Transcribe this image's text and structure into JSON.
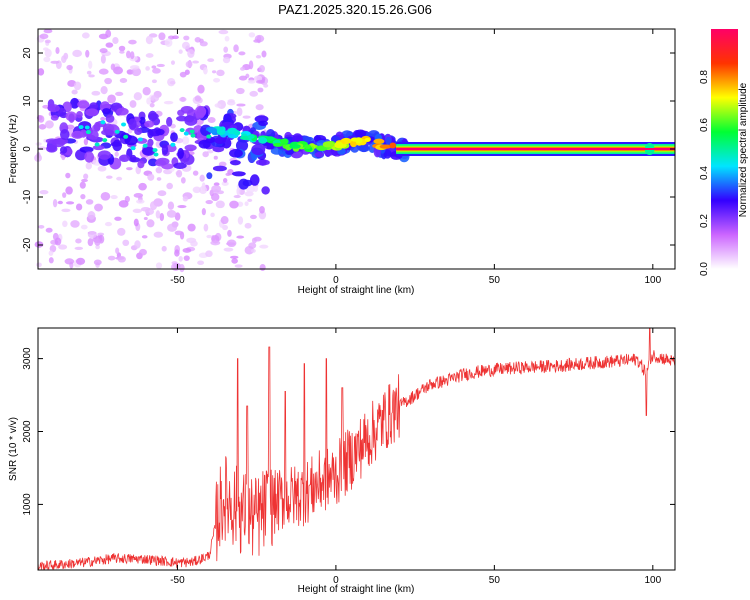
{
  "title": "PAZ1.2025.320.15.26.G06",
  "chart_data": [
    {
      "type": "heatmap",
      "title": "PAZ1.2025.320.15.26.G06",
      "xlabel": "Height of straight line (km)",
      "ylabel": "Frequency (Hz)",
      "xlim": [
        -94,
        107
      ],
      "ylim": [
        -25,
        25
      ],
      "xticks": [
        -50,
        0,
        50,
        100
      ],
      "xtick_labels": [
        "-50",
        "0",
        "50",
        "100"
      ],
      "yticks": [
        -20,
        -10,
        0,
        10,
        20
      ],
      "ytick_labels": [
        "-20",
        "-10",
        "0",
        "10",
        "20"
      ],
      "colorbar": {
        "label": "Normalized spectral amplitude",
        "range": [
          0,
          1
        ],
        "ticks": [
          0.0,
          0.2,
          0.4,
          0.6,
          0.8
        ],
        "tick_labels": [
          "0.0",
          "0.2",
          "0.4",
          "0.6",
          "0.8"
        ],
        "colors": [
          "#ffffff",
          "#cc66ff",
          "#3300ff",
          "#00e5ff",
          "#00ff33",
          "#ffff00",
          "#ff3300",
          "#ff0066"
        ]
      },
      "features": {
        "carrier_line": {
          "x_start": 19,
          "x_end": 107,
          "frequency": 0,
          "amplitude": 1.0
        },
        "noise_region": {
          "x_start": -94,
          "x_end": -22,
          "frequency_spread": 25
        },
        "ridge": [
          {
            "x": -80,
            "f": 4
          },
          {
            "x": -70,
            "f": 3
          },
          {
            "x": -60,
            "f": 1
          },
          {
            "x": -50,
            "f": 2
          },
          {
            "x": -40,
            "f": 4
          },
          {
            "x": -30,
            "f": 3
          },
          {
            "x": -20,
            "f": 1.5
          },
          {
            "x": -10,
            "f": 0.3
          },
          {
            "x": 0,
            "f": 0.8
          },
          {
            "x": 8,
            "f": 1.8
          },
          {
            "x": 14,
            "f": 1
          },
          {
            "x": 19,
            "f": 0
          }
        ]
      }
    },
    {
      "type": "line",
      "xlabel": "Height of straight line (km)",
      "ylabel": "SNR (10 * v/v)",
      "xlim": [
        -94,
        107
      ],
      "ylim": [
        100,
        3420
      ],
      "xticks": [
        -50,
        0,
        50,
        100
      ],
      "xtick_labels": [
        "-50",
        "0",
        "50",
        "100"
      ],
      "yticks": [
        1000,
        2000,
        3000
      ],
      "ytick_labels": [
        "1000",
        "2000",
        "3000"
      ],
      "color": "#ee3333",
      "series": [
        {
          "name": "SNR",
          "x": [
            -94,
            -80,
            -70,
            -60,
            -50,
            -45,
            -40,
            -37,
            -35,
            -30,
            -25,
            -22,
            -18,
            -10,
            -5,
            0,
            5,
            10,
            15,
            20,
            25,
            30,
            35,
            40,
            45,
            50,
            60,
            70,
            80,
            90,
            95,
            98,
            100,
            107
          ],
          "values": [
            150,
            200,
            260,
            250,
            200,
            210,
            300,
            900,
            1100,
            900,
            800,
            950,
            1050,
            1150,
            1300,
            1400,
            1650,
            1900,
            2150,
            2350,
            2500,
            2650,
            2700,
            2780,
            2820,
            2850,
            2880,
            2900,
            2940,
            2970,
            2990,
            2800,
            3050,
            2950
          ]
        }
      ],
      "spikes": [
        {
          "x": -31,
          "value": 3000
        },
        {
          "x": -28,
          "value": 2350
        },
        {
          "x": -21,
          "value": 3160
        },
        {
          "x": -16,
          "value": 2550
        },
        {
          "x": -10,
          "value": 2930
        },
        {
          "x": -3,
          "value": 3000
        },
        {
          "x": 2,
          "value": 2600
        },
        {
          "x": 98,
          "value": 2220
        },
        {
          "x": 99,
          "value": 3420
        }
      ]
    }
  ]
}
